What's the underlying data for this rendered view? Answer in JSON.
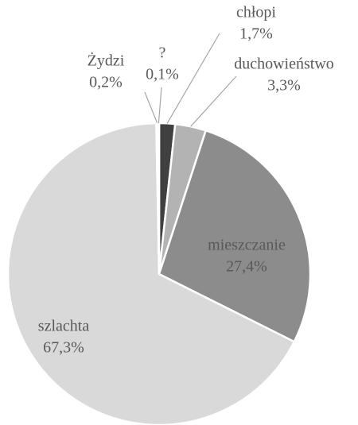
{
  "chart_data": {
    "type": "pie",
    "categories": [
      "chłopi",
      "duchowieństwo",
      "mieszczanie",
      "szlachta",
      "Żydzi",
      "?"
    ],
    "values": [
      1.7,
      3.3,
      27.4,
      67.3,
      0.2,
      0.1
    ],
    "value_labels": [
      "1,7%",
      "3,3%",
      "27,4%",
      "67,3%",
      "0,2%",
      "0,1%"
    ],
    "colors": [
      "#404040",
      "#b3b3b3",
      "#8c8c8c",
      "#d9d9d9",
      "#c6c6c6",
      "#f2f2f2"
    ]
  }
}
